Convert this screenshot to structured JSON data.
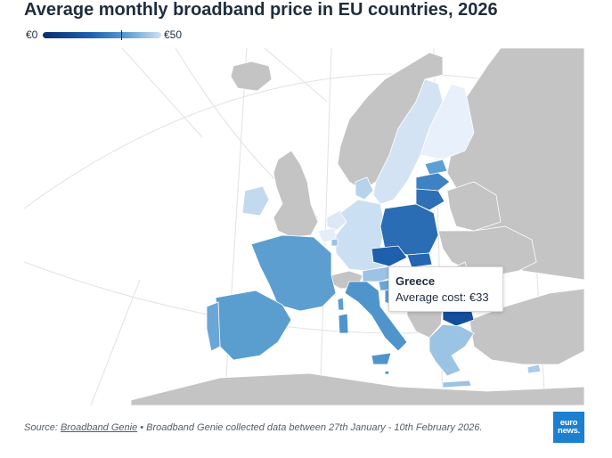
{
  "title": "Average monthly broadband price in EU countries, 2026",
  "legend": {
    "min_label": "€0",
    "max_label": "€50",
    "min_value": 0,
    "max_value": 50,
    "marker_value": 33
  },
  "colors": {
    "no_data": "#c4c4c4",
    "ocean": "#ffffff",
    "scale_dark": "#0b2f6e",
    "scale_mid": "#1e5fae",
    "scale_light": "#cfe1f3"
  },
  "tooltip": {
    "country": "Greece",
    "value_text": "Average cost: €33"
  },
  "footer": {
    "source_prefix": "Source: ",
    "source_link": "Broadband Genie",
    "note": " • Broadband Genie collected data between 27th January - 10th February 2026."
  },
  "logo": {
    "line1": "euro",
    "line2": "news."
  }
}
